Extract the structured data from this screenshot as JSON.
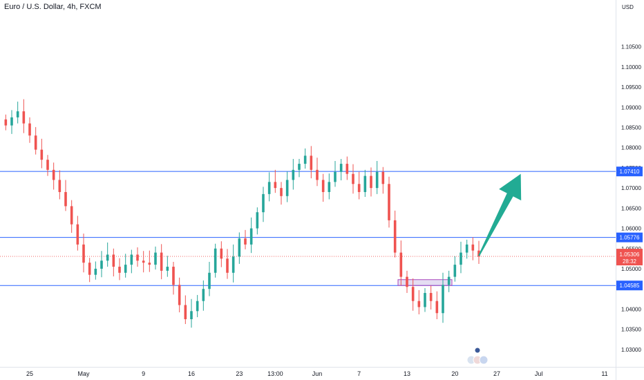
{
  "chart_data": {
    "type": "candlestick",
    "title": "Euro / U.S. Dollar, 4h, FXCM",
    "currency": "USD",
    "ylim": [
      1.0262,
      1.1135
    ],
    "y_ticks": [
      "1.10500",
      "1.10000",
      "1.09500",
      "1.09000",
      "1.08500",
      "1.08000",
      "1.07500",
      "1.07000",
      "1.06500",
      "1.06000",
      "1.05500",
      "1.05000",
      "1.04000",
      "1.03500",
      "1.03000"
    ],
    "x_ticks": [
      "25",
      "May",
      "9",
      "16",
      "23",
      "13:00",
      "Jun",
      "7",
      "13",
      "20",
      "27",
      "Jul",
      "11"
    ],
    "x_tick_pos_index": [
      4,
      13,
      23,
      31,
      39,
      45,
      52,
      59,
      67,
      75,
      82,
      89,
      100
    ],
    "horizontal_levels": [
      {
        "value": 1.0741,
        "label": "1.07410"
      },
      {
        "value": 1.05776,
        "label": "1.05776"
      },
      {
        "value": 1.04585,
        "label": "1.04585"
      }
    ],
    "last_price": {
      "value": 1.05306,
      "label": "1.05306",
      "countdown": "28:32"
    },
    "zone": {
      "x0": 66,
      "x1": 75,
      "low": 1.04585,
      "high": 1.0473
    },
    "arrow": {
      "from": [
        79,
        1.0532
      ],
      "to": [
        86,
        1.0735
      ]
    },
    "colors": {
      "up": "#26a69a",
      "down": "#ef5350",
      "level": "#2962ff",
      "arrow": "#22ab94",
      "zone": "#b39ddb"
    },
    "closes": [
      1.0855,
      1.0875,
      1.089,
      1.086,
      1.083,
      1.0795,
      1.077,
      1.0745,
      1.072,
      1.069,
      1.0655,
      1.061,
      1.056,
      1.0515,
      1.0485,
      1.05,
      1.052,
      1.0535,
      1.0505,
      1.049,
      1.051,
      1.0535,
      1.052,
      1.0515,
      1.051,
      1.054,
      1.0495,
      1.0505,
      1.046,
      1.041,
      1.0375,
      1.0395,
      1.042,
      1.045,
      1.049,
      1.055,
      1.0525,
      1.049,
      1.053,
      1.0575,
      1.056,
      1.06,
      1.064,
      1.0685,
      1.0715,
      1.07,
      1.068,
      1.072,
      1.0745,
      1.076,
      1.078,
      1.0745,
      1.072,
      1.069,
      1.0715,
      1.074,
      1.076,
      1.0735,
      1.071,
      1.069,
      1.073,
      1.07,
      1.074,
      1.071,
      1.062,
      1.054,
      1.048,
      1.0455,
      1.042,
      1.0405,
      1.044,
      1.042,
      1.039,
      1.046,
      1.048,
      1.051,
      1.054,
      1.056,
      1.0545,
      1.053
    ]
  },
  "icons": {
    "events": "economic-event-flags-icon"
  }
}
